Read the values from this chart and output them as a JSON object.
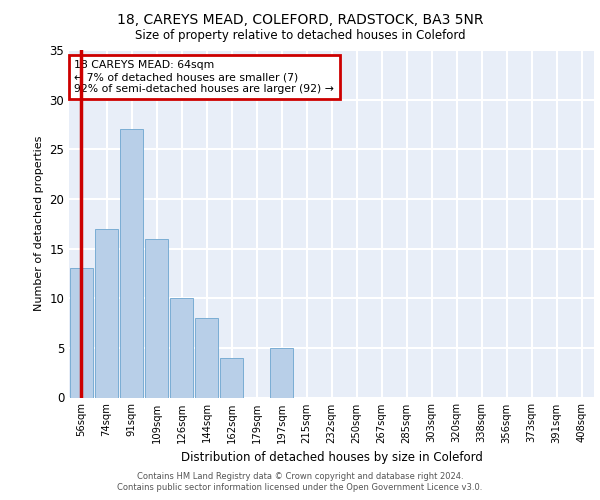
{
  "title1": "18, CAREYS MEAD, COLEFORD, RADSTOCK, BA3 5NR",
  "title2": "Size of property relative to detached houses in Coleford",
  "xlabel": "Distribution of detached houses by size in Coleford",
  "ylabel": "Number of detached properties",
  "categories": [
    "56sqm",
    "74sqm",
    "91sqm",
    "109sqm",
    "126sqm",
    "144sqm",
    "162sqm",
    "179sqm",
    "197sqm",
    "215sqm",
    "232sqm",
    "250sqm",
    "267sqm",
    "285sqm",
    "303sqm",
    "320sqm",
    "338sqm",
    "356sqm",
    "373sqm",
    "391sqm",
    "408sqm"
  ],
  "values": [
    13,
    17,
    27,
    16,
    10,
    8,
    4,
    0,
    5,
    0,
    0,
    0,
    0,
    0,
    0,
    0,
    0,
    0,
    0,
    0,
    0
  ],
  "bar_color": "#b8cfe8",
  "bar_edge_color": "#7aadd4",
  "highlight_color": "#cc0000",
  "annotation_title": "18 CAREYS MEAD: 64sqm",
  "annotation_line2": "← 7% of detached houses are smaller (7)",
  "annotation_line3": "92% of semi-detached houses are larger (92) →",
  "annotation_box_color": "#cc0000",
  "ylim": [
    0,
    35
  ],
  "yticks": [
    0,
    5,
    10,
    15,
    20,
    25,
    30,
    35
  ],
  "background_color": "#e8eef8",
  "grid_color": "#ffffff",
  "footnote1": "Contains HM Land Registry data © Crown copyright and database right 2024.",
  "footnote2": "Contains public sector information licensed under the Open Government Licence v3.0."
}
